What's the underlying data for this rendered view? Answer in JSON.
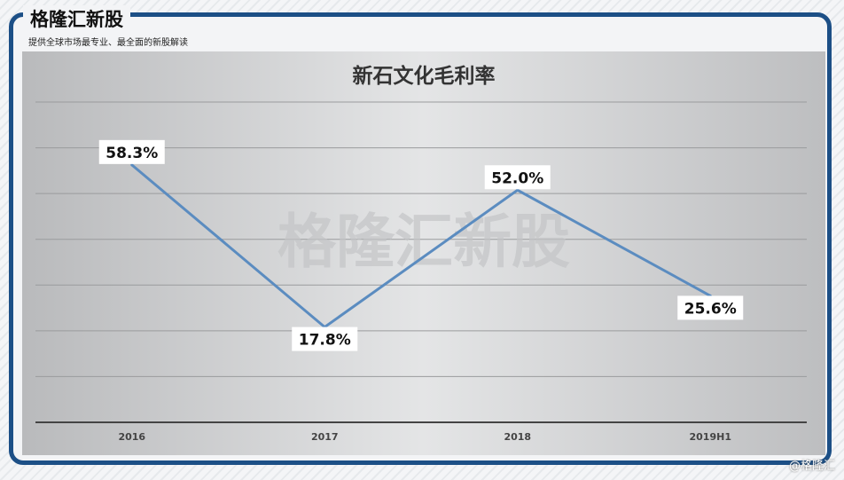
{
  "header": {
    "brand": "格隆汇新股",
    "subtitle": "提供全球市场最专业、最全面的新股解读"
  },
  "watermark": "格隆汇新股",
  "corner_watermark": "@格隆汇",
  "colors": {
    "line": "#5b8cc0",
    "frame": "#1c4f86"
  },
  "chart_data": {
    "type": "line",
    "title": "新石文化毛利率",
    "categories": [
      "2016",
      "2017",
      "2018",
      "2019H1"
    ],
    "series": [
      {
        "values": [
          58.3,
          17.8,
          52.0,
          25.6
        ],
        "labels": [
          "58.3%",
          "17.8%",
          "52.0%",
          "25.6%"
        ]
      }
    ],
    "ylim": [
      -6,
      74
    ],
    "grid": true,
    "legend": "none"
  }
}
